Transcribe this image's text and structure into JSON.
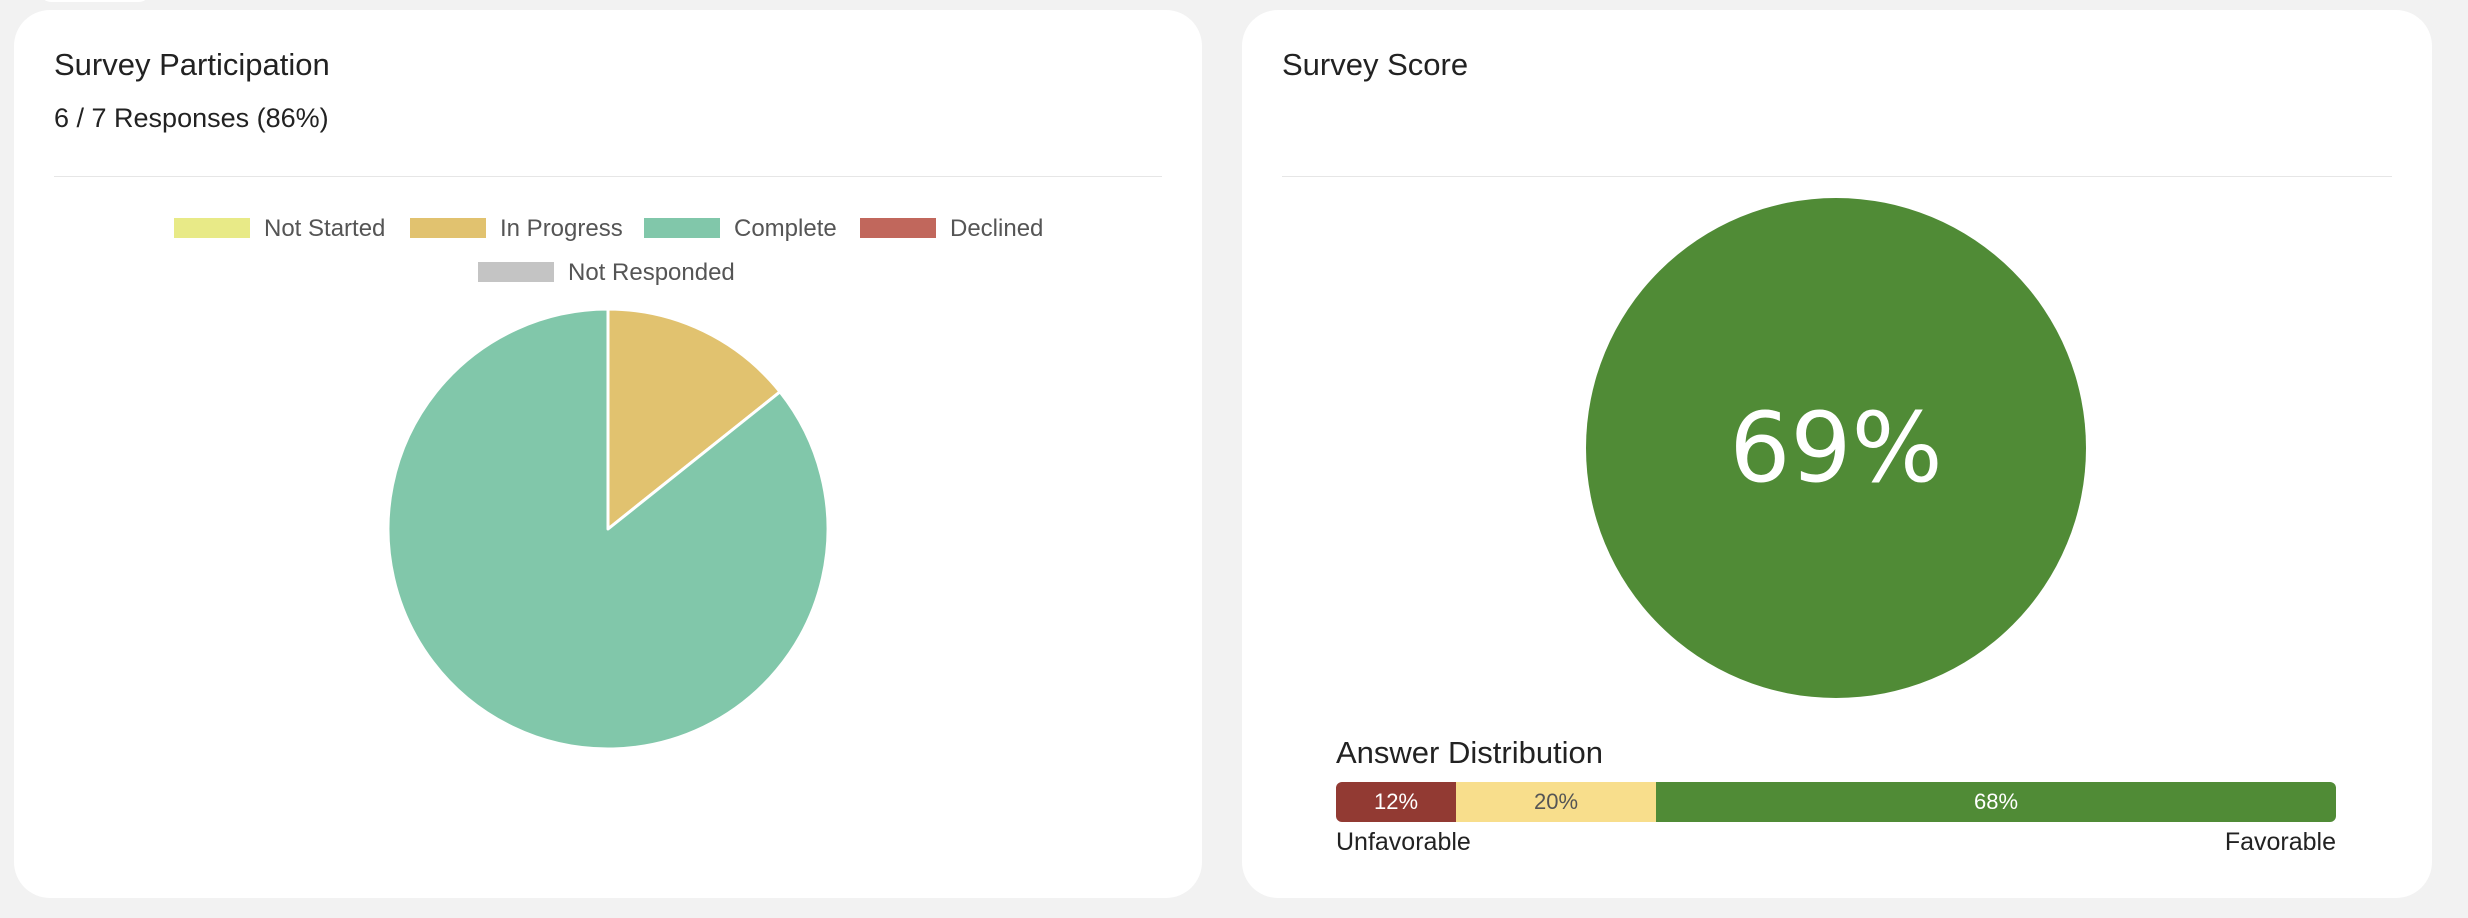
{
  "participation": {
    "title": "Survey Participation",
    "subtitle": "6 / 7 Responses (86%)"
  },
  "score": {
    "title": "Survey Score",
    "value_label": "69%",
    "value": 69,
    "color": "#508b36"
  },
  "distribution": {
    "title": "Answer Distribution",
    "left_label": "Unfavorable",
    "right_label": "Favorable",
    "segments": [
      {
        "label": "12%",
        "value": 12,
        "color": "#923a33",
        "text_color": "#ffffff"
      },
      {
        "label": "20%",
        "value": 20,
        "color": "#f8de8c",
        "text_color": "#555555"
      },
      {
        "label": "68%",
        "value": 68,
        "color": "#508b36",
        "text_color": "#ffffff"
      }
    ]
  },
  "chart_data": [
    {
      "type": "pie",
      "legend_position": "top",
      "categories": [
        "Not Started",
        "In Progress",
        "Complete",
        "Declined",
        "Not Responded"
      ],
      "values": [
        0,
        1,
        6,
        0,
        0
      ],
      "colors": [
        "#e8ea87",
        "#e1c26f",
        "#81c7aa",
        "#c1675c",
        "#c4c4c4"
      ]
    },
    {
      "type": "pie",
      "categories": [
        "Survey Score"
      ],
      "values": [
        69
      ],
      "colors": [
        "#508b36"
      ]
    }
  ]
}
